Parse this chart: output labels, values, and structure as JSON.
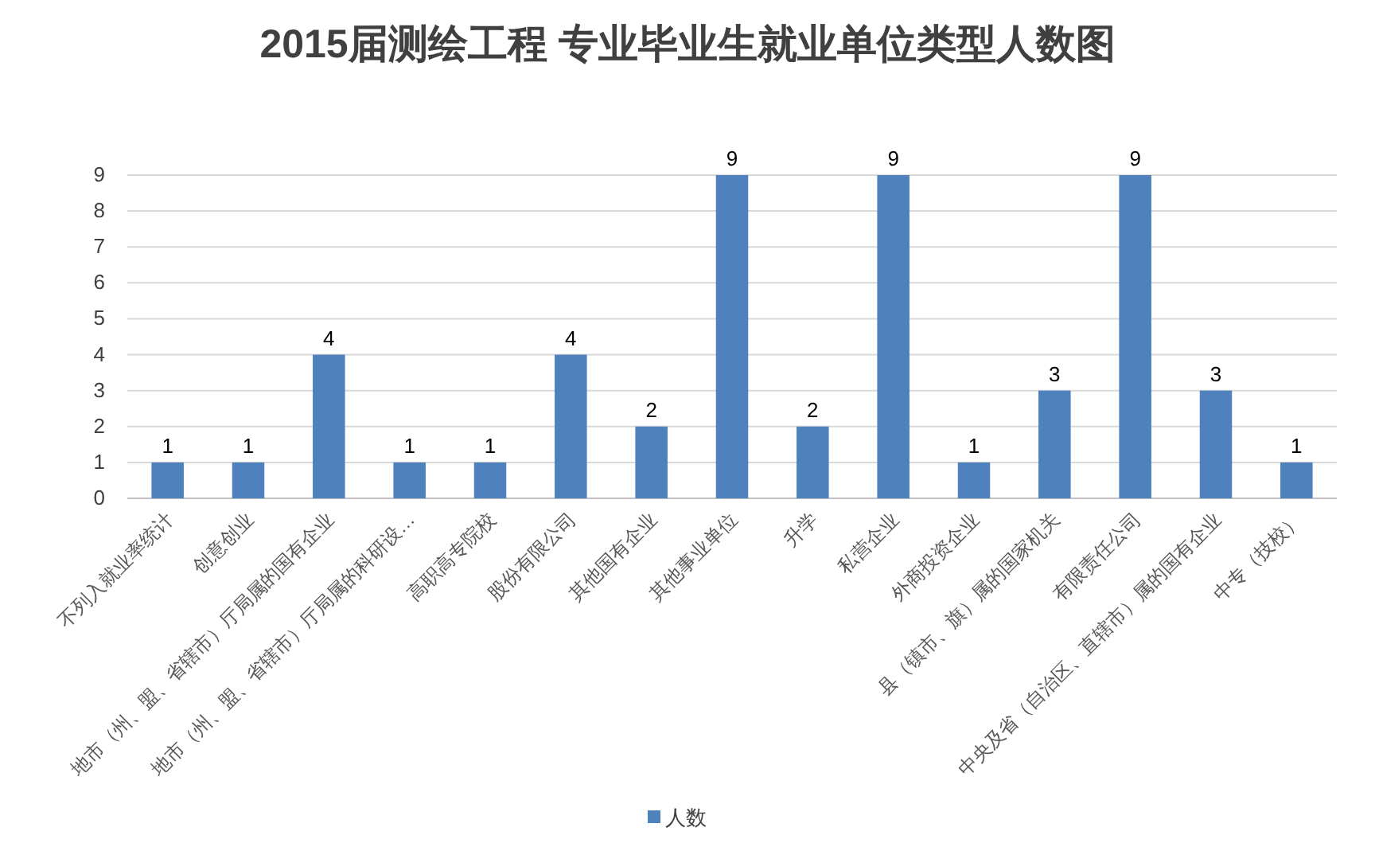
{
  "chart_data": {
    "type": "bar",
    "title": "2015届测绘工程 专业毕业生就业单位类型人数图",
    "categories": [
      "不列入就业率统计",
      "创意创业",
      "地市（州、盟、省辖市）厅局属的国有企业",
      "地市（州、盟、省辖市）厅局属的科研设…",
      "高职高专院校",
      "股份有限公司",
      "其他国有企业",
      "其他事业单位",
      "升学",
      "私营企业",
      "外商投资企业",
      "县（镇市、旗）属的国家机关",
      "有限责任公司",
      "中央及省（自治区、直辖市）属的国有企业",
      "中专（技校）"
    ],
    "series": [
      {
        "name": "人数",
        "color": "#4f81bd",
        "values": [
          1,
          1,
          4,
          1,
          1,
          4,
          2,
          9,
          2,
          9,
          1,
          3,
          9,
          3,
          1
        ]
      }
    ],
    "ylim": [
      0,
      9
    ],
    "yticks": [
      0,
      1,
      2,
      3,
      4,
      5,
      6,
      7,
      8,
      9
    ],
    "grid": "y",
    "legend": "bottom",
    "data_labels": true
  }
}
